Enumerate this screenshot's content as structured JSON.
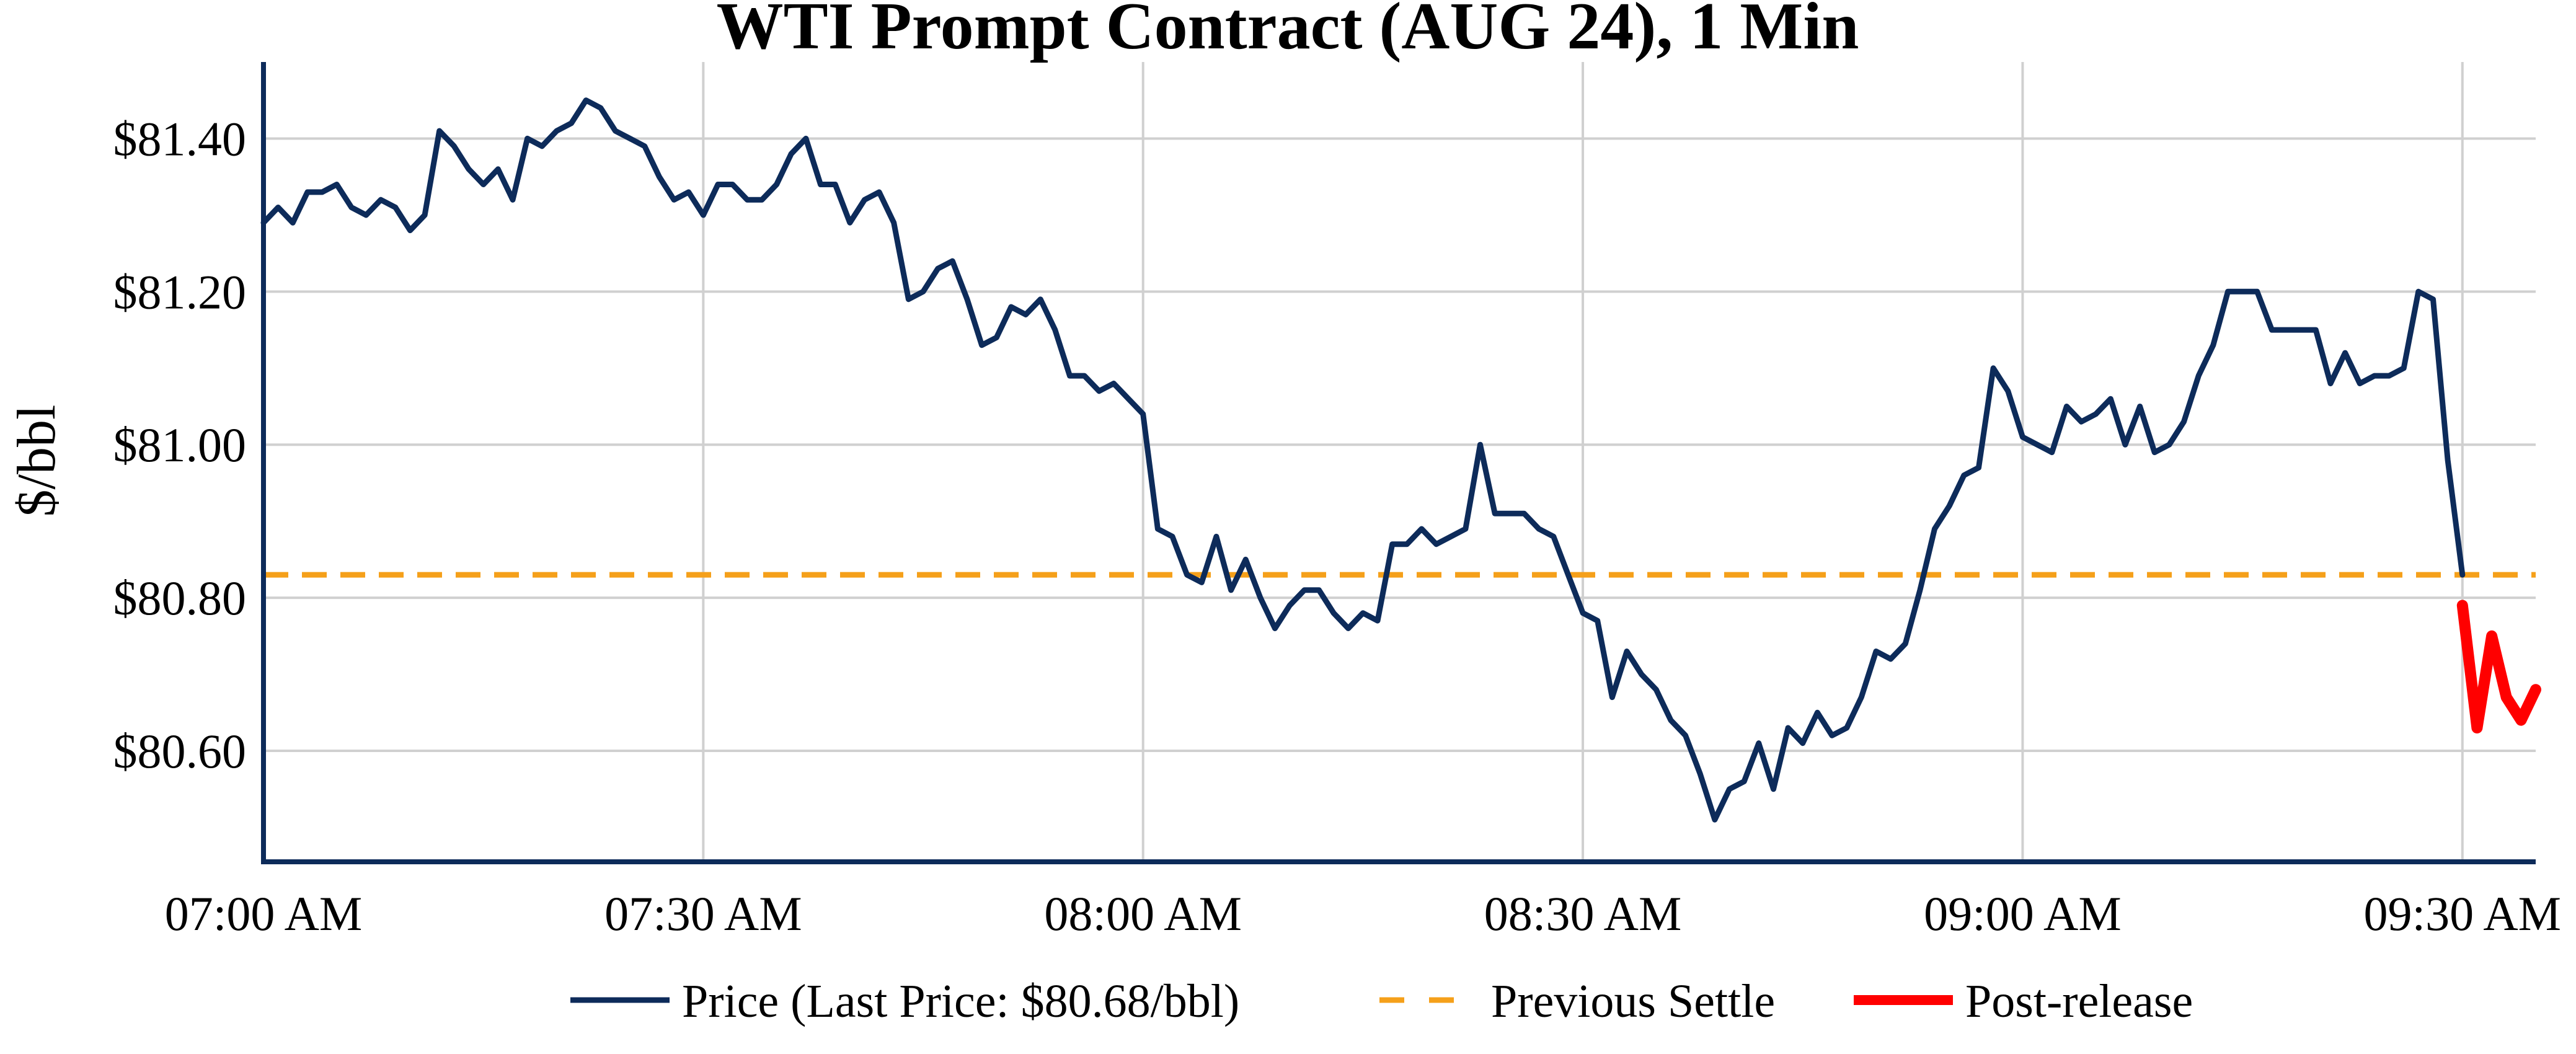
{
  "chart_data": {
    "type": "line",
    "title": "WTI Prompt Contract (AUG 24), 1 Min",
    "xlabel": "",
    "ylabel": "$/bbl",
    "x_unit": "minutes since 07:00 AM",
    "xlim": [
      0,
      155
    ],
    "ylim": [
      80.455,
      81.5
    ],
    "x_ticks": [
      {
        "value": 0,
        "label": "07:00 AM"
      },
      {
        "value": 30,
        "label": "07:30 AM"
      },
      {
        "value": 60,
        "label": "08:00 AM"
      },
      {
        "value": 90,
        "label": "08:30 AM"
      },
      {
        "value": 120,
        "label": "09:00 AM"
      },
      {
        "value": 150,
        "label": "09:30 AM"
      }
    ],
    "y_ticks": [
      {
        "value": 80.6,
        "label": "$80.60"
      },
      {
        "value": 80.8,
        "label": "$80.80"
      },
      {
        "value": 81.0,
        "label": "$81.00"
      },
      {
        "value": 81.2,
        "label": "$81.20"
      },
      {
        "value": 81.4,
        "label": "$81.40"
      }
    ],
    "grid": true,
    "legend_position": "bottom-center",
    "series": [
      {
        "name": "Price (Last Price: $80.68/bbl)",
        "color": "#0d2b5a",
        "style": "solid",
        "x": [
          0,
          1,
          2,
          3,
          4,
          5,
          6,
          7,
          8,
          9,
          10,
          11,
          12,
          13,
          14,
          15,
          16,
          17,
          18,
          19,
          20,
          21,
          22,
          23,
          24,
          25,
          26,
          27,
          28,
          29,
          30,
          31,
          32,
          33,
          34,
          35,
          36,
          37,
          38,
          39,
          40,
          41,
          42,
          43,
          44,
          45,
          46,
          47,
          48,
          49,
          50,
          51,
          52,
          53,
          54,
          55,
          56,
          57,
          58,
          59,
          60,
          61,
          62,
          63,
          64,
          65,
          66,
          67,
          68,
          69,
          70,
          71,
          72,
          73,
          74,
          75,
          76,
          77,
          78,
          79,
          80,
          81,
          82,
          83,
          84,
          85,
          86,
          87,
          88,
          89,
          90,
          91,
          92,
          93,
          94,
          95,
          96,
          97,
          98,
          99,
          100,
          101,
          102,
          103,
          104,
          105,
          106,
          107,
          108,
          109,
          110,
          111,
          112,
          113,
          114,
          115,
          116,
          117,
          118,
          119,
          120,
          121,
          122,
          123,
          124,
          125,
          126,
          127,
          128,
          129,
          130,
          131,
          132,
          133,
          134,
          135,
          136,
          137,
          138,
          139,
          140,
          141,
          142,
          143,
          144,
          145,
          146,
          147,
          148,
          149,
          150
        ],
        "values": [
          81.29,
          81.31,
          81.29,
          81.33,
          81.33,
          81.34,
          81.31,
          81.3,
          81.32,
          81.31,
          81.28,
          81.3,
          81.41,
          81.39,
          81.36,
          81.34,
          81.36,
          81.32,
          81.4,
          81.39,
          81.41,
          81.42,
          81.45,
          81.44,
          81.41,
          81.4,
          81.39,
          81.35,
          81.32,
          81.33,
          81.3,
          81.34,
          81.34,
          81.32,
          81.32,
          81.34,
          81.38,
          81.4,
          81.34,
          81.34,
          81.29,
          81.32,
          81.33,
          81.29,
          81.19,
          81.2,
          81.23,
          81.24,
          81.19,
          81.13,
          81.14,
          81.18,
          81.17,
          81.19,
          81.15,
          81.09,
          81.09,
          81.07,
          81.08,
          81.06,
          81.04,
          80.89,
          80.88,
          80.83,
          80.82,
          80.88,
          80.81,
          80.85,
          80.8,
          80.76,
          80.79,
          80.81,
          80.81,
          80.78,
          80.76,
          80.78,
          80.77,
          80.87,
          80.87,
          80.89,
          80.87,
          80.88,
          80.89,
          81.0,
          80.91,
          80.91,
          80.91,
          80.89,
          80.88,
          80.83,
          80.78,
          80.77,
          80.67,
          80.73,
          80.7,
          80.68,
          80.64,
          80.62,
          80.57,
          80.51,
          80.55,
          80.56,
          80.61,
          80.55,
          80.63,
          80.61,
          80.65,
          80.62,
          80.63,
          80.67,
          80.73,
          80.72,
          80.74,
          80.81,
          80.89,
          80.92,
          80.96,
          80.97,
          81.1,
          81.07,
          81.01,
          81.0,
          80.99,
          81.05,
          81.03,
          81.04,
          81.06,
          81.0,
          81.05,
          80.99,
          81.0,
          81.03,
          81.09,
          81.13,
          81.2,
          81.2,
          81.2,
          81.15,
          81.15,
          81.15,
          81.15,
          81.08,
          81.12,
          81.08,
          81.09,
          81.09,
          81.1,
          81.2,
          81.19,
          80.98,
          80.83
        ]
      },
      {
        "name": "Previous Settle",
        "color": "#f5a01a",
        "style": "dashed",
        "x": [
          0,
          155
        ],
        "values": [
          80.83,
          80.83
        ]
      },
      {
        "name": "Post-release",
        "color": "#ff0000",
        "style": "solid-thick",
        "x": [
          150,
          151,
          152,
          153,
          154,
          155
        ],
        "values": [
          80.79,
          80.63,
          80.75,
          80.67,
          80.64,
          80.68
        ]
      }
    ]
  }
}
